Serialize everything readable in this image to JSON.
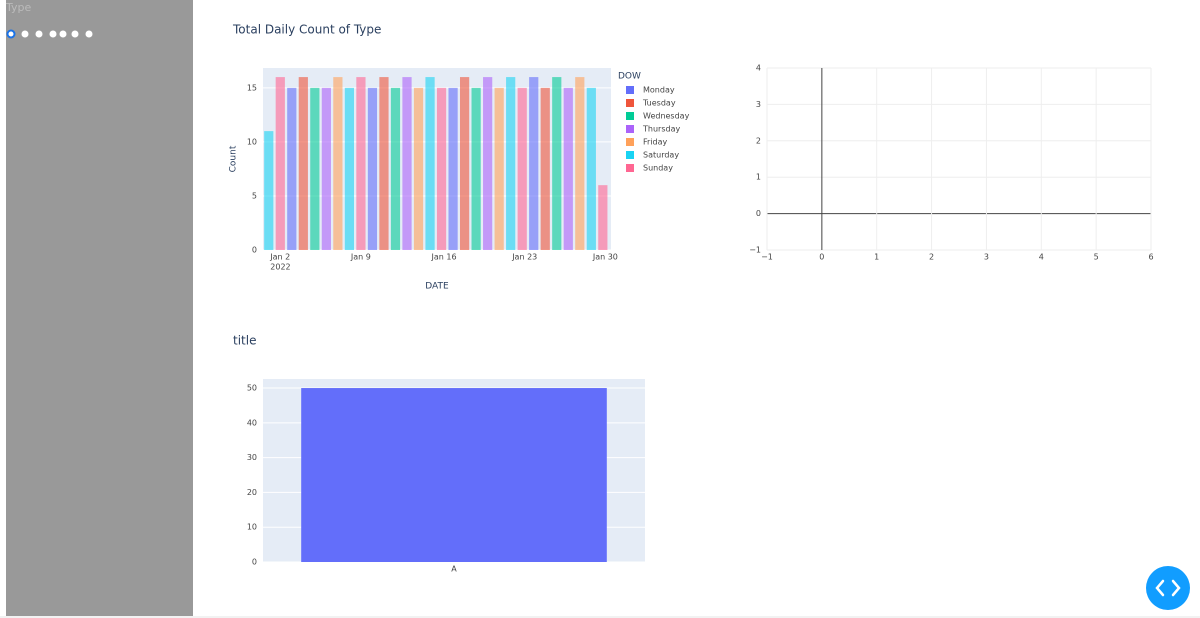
{
  "sidebar": {
    "label": "Type"
  },
  "chart_data": [
    {
      "type": "bar",
      "title": "Total Daily Count of Type",
      "x": [
        "2022-01-01",
        "2022-01-02",
        "2022-01-03",
        "2022-01-04",
        "2022-01-05",
        "2022-01-06",
        "2022-01-07",
        "2022-01-08",
        "2022-01-09",
        "2022-01-10",
        "2022-01-11",
        "2022-01-12",
        "2022-01-13",
        "2022-01-14",
        "2022-01-15",
        "2022-01-16",
        "2022-01-17",
        "2022-01-18",
        "2022-01-19",
        "2022-01-20",
        "2022-01-21",
        "2022-01-22",
        "2022-01-23",
        "2022-01-24",
        "2022-01-25",
        "2022-01-26",
        "2022-01-27",
        "2022-01-28",
        "2022-01-29",
        "2022-01-30"
      ],
      "series": [
        {
          "name": "Monday",
          "color": "#636efa",
          "values": [
            null,
            null,
            15,
            null,
            null,
            null,
            null,
            null,
            null,
            15,
            null,
            null,
            null,
            null,
            null,
            null,
            15,
            null,
            null,
            null,
            null,
            null,
            null,
            16,
            null,
            null,
            null,
            null,
            null,
            null
          ]
        },
        {
          "name": "Tuesday",
          "color": "#ef553b",
          "values": [
            null,
            null,
            null,
            16,
            null,
            null,
            null,
            null,
            null,
            null,
            16,
            null,
            null,
            null,
            null,
            null,
            null,
            16,
            null,
            null,
            null,
            null,
            null,
            null,
            15,
            null,
            null,
            null,
            null,
            null
          ]
        },
        {
          "name": "Wednesday",
          "color": "#00cc96",
          "values": [
            null,
            null,
            null,
            null,
            15,
            null,
            null,
            null,
            null,
            null,
            null,
            15,
            null,
            null,
            null,
            null,
            null,
            null,
            15,
            null,
            null,
            null,
            null,
            null,
            null,
            16,
            null,
            null,
            null,
            null
          ]
        },
        {
          "name": "Thursday",
          "color": "#ab63fa",
          "values": [
            null,
            null,
            null,
            null,
            null,
            15,
            null,
            null,
            null,
            null,
            null,
            null,
            16,
            null,
            null,
            null,
            null,
            null,
            null,
            16,
            null,
            null,
            null,
            null,
            null,
            null,
            15,
            null,
            null,
            null
          ]
        },
        {
          "name": "Friday",
          "color": "#ffa15a",
          "values": [
            null,
            null,
            null,
            null,
            null,
            null,
            16,
            null,
            null,
            null,
            null,
            null,
            null,
            15,
            null,
            null,
            null,
            null,
            null,
            null,
            15,
            null,
            null,
            null,
            null,
            null,
            null,
            16,
            null,
            null
          ]
        },
        {
          "name": "Saturday",
          "color": "#19d3f3",
          "values": [
            11,
            null,
            null,
            null,
            null,
            null,
            null,
            15,
            null,
            null,
            null,
            null,
            null,
            null,
            16,
            null,
            null,
            null,
            null,
            null,
            null,
            16,
            null,
            null,
            null,
            null,
            null,
            null,
            15,
            null
          ]
        },
        {
          "name": "Sunday",
          "color": "#ff6692",
          "values": [
            null,
            16,
            null,
            null,
            null,
            null,
            null,
            null,
            16,
            null,
            null,
            null,
            null,
            null,
            null,
            15,
            null,
            null,
            null,
            null,
            null,
            null,
            15,
            null,
            null,
            null,
            null,
            null,
            null,
            6
          ]
        }
      ],
      "opacity": 0.6,
      "xlim": [
        "2021-12-31T12:00",
        "2022-01-30T17:00"
      ],
      "xticks": [
        {
          "value": "2022-01-02",
          "label": "Jan 2"
        },
        {
          "value": "2022-01-09",
          "label": "Jan 9"
        },
        {
          "value": "2022-01-16",
          "label": "Jan 16"
        },
        {
          "value": "2022-01-23",
          "label": "Jan 23"
        },
        {
          "value": "2022-01-30",
          "label": "Jan 30"
        }
      ],
      "x_year_label": "2022",
      "ylim": [
        0,
        16.84
      ],
      "yticks": [
        0,
        5,
        10,
        15
      ],
      "xlabel": "DATE",
      "ylabel": "Count",
      "legend_title": "DOW",
      "plot_bgcolor": "#e5ecf6",
      "grid": true
    },
    {
      "type": "scatter",
      "series": [],
      "xlim": [
        -1,
        6
      ],
      "xticks": [
        {
          "value": -1,
          "label": "−1"
        },
        0,
        1,
        2,
        3,
        4,
        5,
        6
      ],
      "ylim": [
        -1,
        4
      ],
      "yticks": [
        {
          "value": -1,
          "label": "−1"
        },
        0,
        1,
        2,
        3,
        4
      ],
      "plot_bgcolor": "#ffffff",
      "grid": true,
      "zeroline": true
    },
    {
      "type": "bar",
      "title": "title",
      "categories": [
        "A"
      ],
      "values": [
        50
      ],
      "color": "#636efa",
      "ylim": [
        0,
        52.6
      ],
      "yticks": [
        0,
        10,
        20,
        30,
        40,
        50
      ],
      "plot_bgcolor": "#e5ecf6",
      "grid": true
    }
  ]
}
